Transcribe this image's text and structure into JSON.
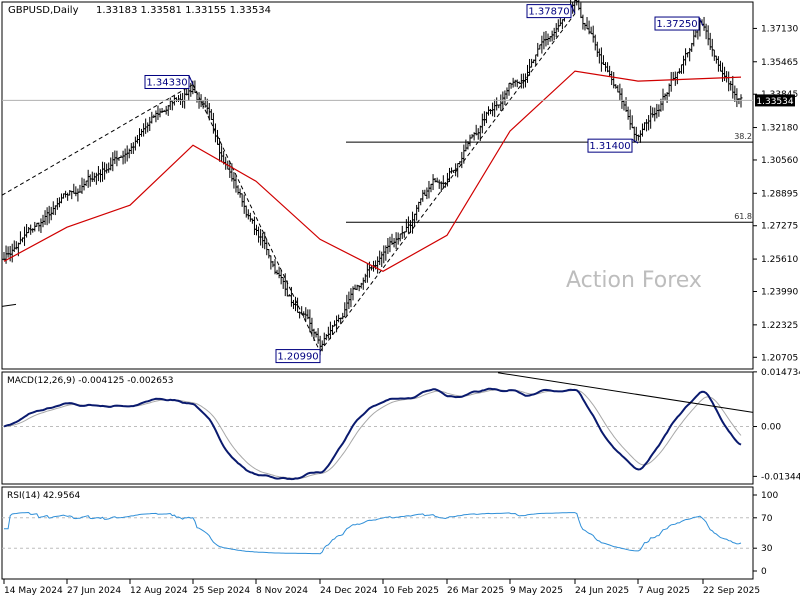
{
  "header": {
    "symbol_timeframe": "GBPUSD,Daily",
    "ohlc": "1.33183 1.33581 1.33155 1.33534"
  },
  "watermark": "Action Forex",
  "colors": {
    "candles": "#000000",
    "moving_average": "#d00000",
    "current_price_line": "#b0b0b0",
    "macd_line": "#0a1a6e",
    "macd_signal": "#a8a8a8",
    "rsi_line": "#2f8fd8",
    "fib_lines": "#000000",
    "label_border": "#000080",
    "label_text": "#000080",
    "price_tag_bg": "#000000",
    "price_tag_text": "#ffffff"
  },
  "chart_data": [
    {
      "type": "line",
      "panel": "price",
      "description_series": "daily OHLC candles with moving average",
      "y_ticks": [
        "1.37130",
        "1.35465",
        "1.33845",
        "1.32180",
        "1.30560",
        "1.28895",
        "1.27275",
        "1.25610",
        "1.23990",
        "1.22325",
        "1.20705"
      ],
      "ylim": [
        1.2012,
        1.3845
      ],
      "current_price": "1.33534",
      "x_ticks": [
        "14 May 2024",
        "27 Jun 2024",
        "12 Aug 2024",
        "25 Sep 2024",
        "8 Nov 2024",
        "24 Dec 2024",
        "10 Feb 2025",
        "26 Mar 2025",
        "9 May 2025",
        "24 Jun 2025",
        "7 Aug 2025",
        "22 Sep 2025"
      ],
      "price_path": [
        {
          "x": "14 May 2024",
          "y": 1.258
        },
        {
          "x": "27 Jun 2024",
          "y": 1.284
        },
        {
          "x": "12 Aug 2024",
          "y": 1.313
        },
        {
          "x": "25 Sep 2024",
          "y": 1.3433
        },
        {
          "x": "8 Nov 2024",
          "y": 1.27
        },
        {
          "x": "24 Dec 2024",
          "y": 1.2099
        },
        {
          "x": "10 Feb 2025",
          "y": 1.258
        },
        {
          "x": "26 Mar 2025",
          "y": 1.3
        },
        {
          "x": "9 May 2025",
          "y": 1.345
        },
        {
          "x": "24 Jun 2025",
          "y": 1.3787
        },
        {
          "x": "7 Aug 2025",
          "y": 1.314
        },
        {
          "x": "22 Sep 2025",
          "y": 1.3725
        },
        {
          "x": "22 Sep 2025",
          "y": 1.3353
        }
      ],
      "moving_average_path": [
        {
          "x": "14 May 2024",
          "y": 1.255
        },
        {
          "x": "27 Jun 2024",
          "y": 1.272
        },
        {
          "x": "12 Aug 2024",
          "y": 1.283
        },
        {
          "x": "25 Sep 2024",
          "y": 1.313
        },
        {
          "x": "8 Nov 2024",
          "y": 1.295
        },
        {
          "x": "24 Dec 2024",
          "y": 1.266
        },
        {
          "x": "10 Feb 2025",
          "y": 1.25
        },
        {
          "x": "26 Mar 2025",
          "y": 1.268
        },
        {
          "x": "9 May 2025",
          "y": 1.32
        },
        {
          "x": "24 Jun 2025",
          "y": 1.35
        },
        {
          "x": "7 Aug 2025",
          "y": 1.345
        },
        {
          "x": "22 Sep 2025",
          "y": 1.347
        }
      ],
      "labels": [
        {
          "text": "1.34330",
          "price": 1.3433,
          "at": "25 Sep 2024"
        },
        {
          "text": "1.20990",
          "price": 1.2099,
          "at": "24 Dec 2024"
        },
        {
          "text": "1.37870",
          "price": 1.3787,
          "at": "24 Jun 2025"
        },
        {
          "text": "1.37250",
          "price": 1.3725,
          "at": "22 Sep 2025"
        },
        {
          "text": "1.31400",
          "price": 1.314,
          "at": "7 Aug 2025"
        }
      ],
      "fib_levels": [
        {
          "label": "38.2",
          "price": 1.3145
        },
        {
          "label": "61.8",
          "price": 1.2745
        }
      ]
    },
    {
      "type": "line",
      "panel": "macd",
      "title": "MACD(12,26,9) -0.004125 -0.002653",
      "y_ticks": [
        "0.014734",
        "0.00",
        "-0.013442"
      ],
      "ylim": [
        -0.0155,
        0.0147
      ]
    },
    {
      "type": "line",
      "panel": "rsi",
      "title": "RSI(14) 42.9564",
      "y_ticks": [
        "100",
        "70",
        "30",
        "0"
      ],
      "ylim": [
        0,
        100
      ],
      "levels": [
        70,
        30
      ]
    }
  ]
}
